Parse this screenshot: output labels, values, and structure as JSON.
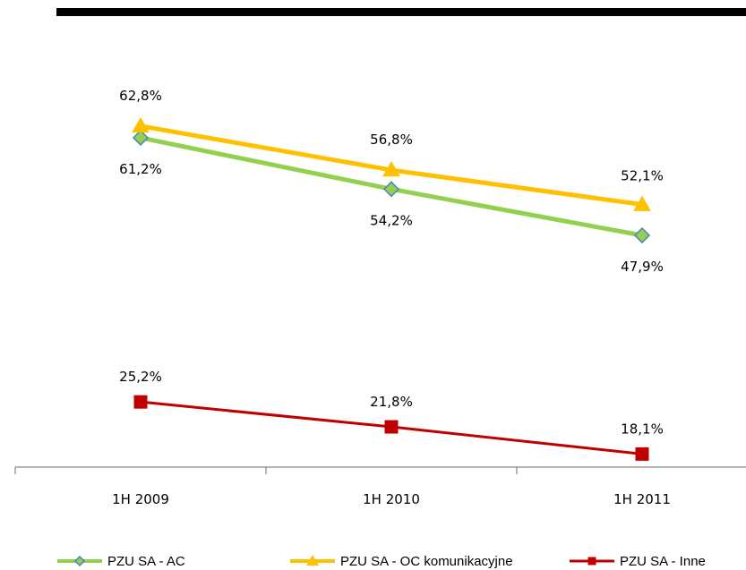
{
  "chart_data": {
    "type": "line",
    "categories": [
      "1H 2009",
      "1H 2010",
      "1H 2011"
    ],
    "series": [
      {
        "name": "PZU SA - AC",
        "values": [
          61.2,
          54.2,
          47.9
        ],
        "labels": [
          "61,2%",
          "54,2%",
          "47,9%"
        ],
        "color": "#92d050",
        "marker": "diamond",
        "marker_fill": "#92d050",
        "marker_edge": "#4f81bd"
      },
      {
        "name": "PZU SA - OC komunikacyjne",
        "values": [
          62.8,
          56.8,
          52.1
        ],
        "labels": [
          "62,8%",
          "56,8%",
          "52,1%"
        ],
        "color": "#ffc000",
        "marker": "triangle",
        "marker_fill": "#ffc000",
        "marker_edge": "#ffc000"
      },
      {
        "name": "PZU SA - Inne",
        "values": [
          25.2,
          21.8,
          18.1
        ],
        "labels": [
          "25,2%",
          "21,8%",
          "18,1%"
        ],
        "color": "#c00000",
        "marker": "square",
        "marker_fill": "#c00000",
        "marker_edge": "#c00000"
      }
    ],
    "legend_position": "bottom",
    "grid": false,
    "value_axis_visible": false
  }
}
